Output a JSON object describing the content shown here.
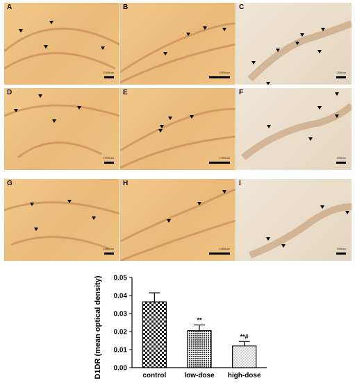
{
  "figure": {
    "panels": [
      {
        "letter": "A",
        "scale_label": "100Mum",
        "tone": "amber"
      },
      {
        "letter": "B",
        "scale_label": "100Mum",
        "tone": "amber"
      },
      {
        "letter": "C",
        "scale_label": "20Mum",
        "tone": "pale"
      },
      {
        "letter": "D",
        "scale_label": "100Mum",
        "tone": "amber"
      },
      {
        "letter": "E",
        "scale_label": "100Mum",
        "tone": "amber"
      },
      {
        "letter": "F",
        "scale_label": "20Mum",
        "tone": "pale"
      },
      {
        "letter": "G",
        "scale_label": "100Mum",
        "tone": "amber"
      },
      {
        "letter": "H",
        "scale_label": "100Mum",
        "tone": "amber"
      },
      {
        "letter": "I",
        "scale_label": "20Mum",
        "tone": "pale"
      }
    ]
  },
  "chart_data": {
    "type": "bar",
    "categories": [
      "control",
      "low-dose",
      "high-dose"
    ],
    "values": [
      0.0365,
      0.0205,
      0.012
    ],
    "errors": [
      0.005,
      0.0032,
      0.0025
    ],
    "significance": [
      "",
      "**",
      "**#"
    ],
    "ylabel": "D1DR (mean optical density)",
    "ylim": [
      0,
      0.05
    ],
    "yticks": [
      "0.00",
      "0.01",
      "0.02",
      "0.03",
      "0.04",
      "0.05"
    ],
    "bar_patterns": [
      "checker",
      "hatch",
      "dots"
    ],
    "grid": false
  }
}
